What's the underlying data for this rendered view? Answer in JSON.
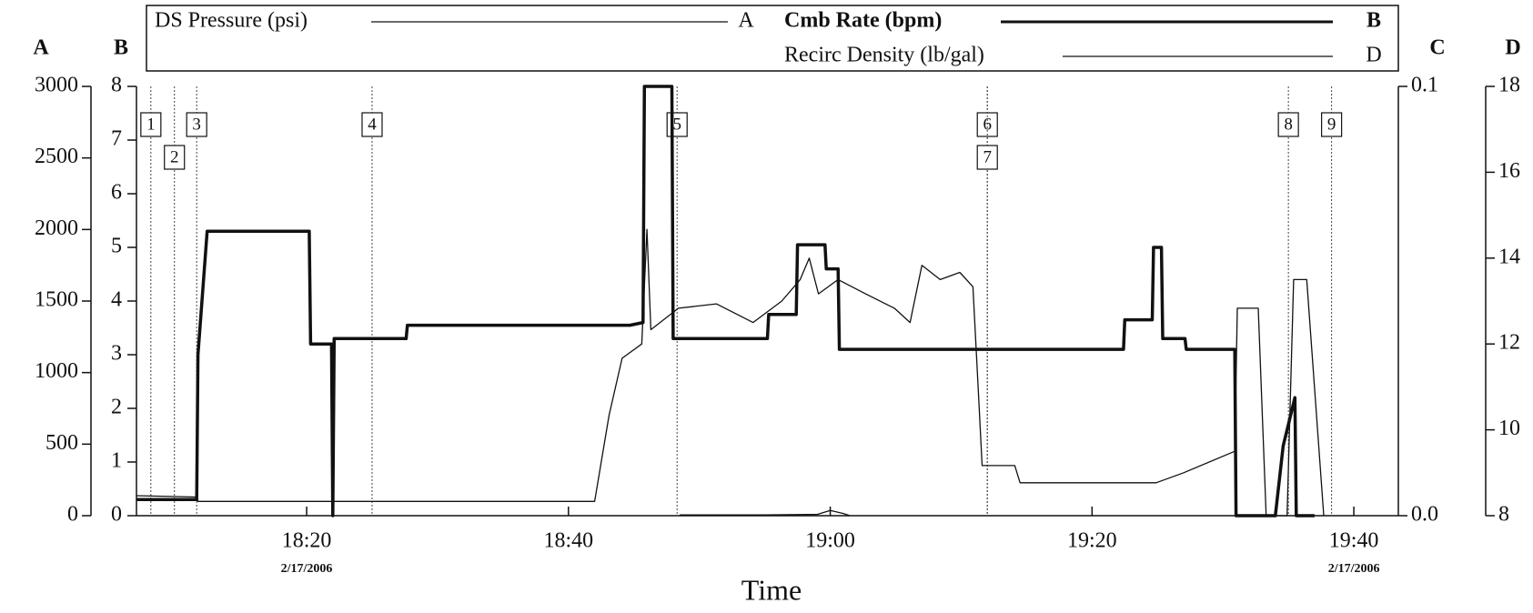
{
  "chart_data": {
    "type": "line",
    "x_label": "Time",
    "xlim": [
      1087,
      1183.4
    ],
    "xticks": [
      {
        "value": 1100,
        "label": "18:20"
      },
      {
        "value": 1120,
        "label": "18:40"
      },
      {
        "value": 1140,
        "label": "19:00"
      },
      {
        "value": 1160,
        "label": "19:20"
      },
      {
        "value": 1180,
        "label": "19:40"
      }
    ],
    "date_labels": [
      {
        "value": 1100,
        "label": "2/17/2006"
      },
      {
        "value": 1180,
        "label": "2/17/2006"
      }
    ],
    "axes": [
      {
        "name": "A",
        "lim": [
          0,
          3000
        ],
        "ticks": [
          0,
          500,
          1000,
          1500,
          2000,
          2500,
          3000
        ]
      },
      {
        "name": "B",
        "lim": [
          0,
          8
        ],
        "ticks": [
          0,
          1,
          2,
          3,
          4,
          5,
          6,
          7,
          8
        ]
      },
      {
        "name": "C",
        "lim": [
          0,
          0.1
        ],
        "ticks": [
          {
            "value": 0,
            "label": "0.0"
          },
          {
            "value": 0.1,
            "label": "0.1"
          }
        ]
      },
      {
        "name": "D",
        "lim": [
          8,
          18
        ],
        "ticks": [
          8,
          10,
          12,
          14,
          16,
          18
        ]
      }
    ],
    "series": [
      {
        "name": "DS Pressure (psi)",
        "axis": "A",
        "color": "#111111",
        "bold": false,
        "x": [
          1087.0,
          1091.6,
          1091.7,
          1122.0,
          1123.1,
          1124.1,
          1125.6,
          1126.0,
          1126.3,
          1128.4,
          1131.3,
          1134.1,
          1136.3,
          1137.7,
          1138.4,
          1139.1,
          1140.6,
          1142.7,
          1144.9,
          1146.1,
          1147.0,
          1148.4,
          1149.9,
          1150.9,
          1151.3,
          1151.6,
          1154.1,
          1154.5,
          1164.9,
          1167.0,
          1170.9,
          1171.1,
          1172.7,
          1173.3,
          1174.9,
          1175.4,
          1176.4,
          1177.7
        ],
        "values": [
          140,
          130,
          100,
          100,
          700,
          1100,
          1200,
          2000,
          1300,
          1450,
          1480,
          1350,
          1500,
          1650,
          1800,
          1550,
          1650,
          1550,
          1450,
          1350,
          1750,
          1650,
          1700,
          1600,
          900,
          350,
          350,
          230,
          230,
          300,
          450,
          1450,
          1450,
          0,
          0,
          1650,
          1650,
          0
        ]
      },
      {
        "name": "Cmb Rate (bpm)",
        "axis": "B",
        "color": "#111111",
        "bold": true,
        "x": [
          1087.0,
          1091.6,
          1091.7,
          1092.4,
          1100.2,
          1100.3,
          1101.9,
          1102.0,
          1102.1,
          1107.6,
          1107.7,
          1124.7,
          1125.7,
          1125.8,
          1127.9,
          1128.0,
          1135.2,
          1135.3,
          1137.4,
          1137.5,
          1139.6,
          1139.7,
          1140.6,
          1140.7,
          1162.4,
          1162.5,
          1164.6,
          1164.7,
          1165.3,
          1165.4,
          1167.1,
          1167.2,
          1170.9,
          1171.0,
          1174.0,
          1174.6,
          1175.5,
          1175.6,
          1177.0
        ],
        "values": [
          0.3,
          0.3,
          3.0,
          5.3,
          5.3,
          3.2,
          3.2,
          0,
          3.3,
          3.3,
          3.55,
          3.55,
          3.6,
          8,
          8,
          3.3,
          3.3,
          3.75,
          3.75,
          5.05,
          5.05,
          4.6,
          4.6,
          3.1,
          3.1,
          3.65,
          3.65,
          5.0,
          5.0,
          3.3,
          3.3,
          3.1,
          3.1,
          0,
          0,
          1.3,
          2.2,
          0,
          0
        ]
      },
      {
        "name": "Recirc Density (lb/gal)",
        "axis": "D",
        "color": "#111111",
        "bold": false,
        "x": [
          1128.5,
          1135,
          1139,
          1140,
          1141,
          1141.5
        ],
        "values": [
          8.02,
          8.02,
          8.03,
          8.12,
          8.05,
          8.0
        ]
      }
    ],
    "events": [
      {
        "label": "1",
        "t": 1088.1
      },
      {
        "label": "2",
        "t": 1089.9
      },
      {
        "label": "3",
        "t": 1091.6
      },
      {
        "label": "4",
        "t": 1105.0
      },
      {
        "label": "5",
        "t": 1128.3
      },
      {
        "label": "6",
        "t": 1152.0
      },
      {
        "label": "7",
        "t": 1152.0
      },
      {
        "label": "8",
        "t": 1175.0
      },
      {
        "label": "9",
        "t": 1178.3
      }
    ]
  }
}
